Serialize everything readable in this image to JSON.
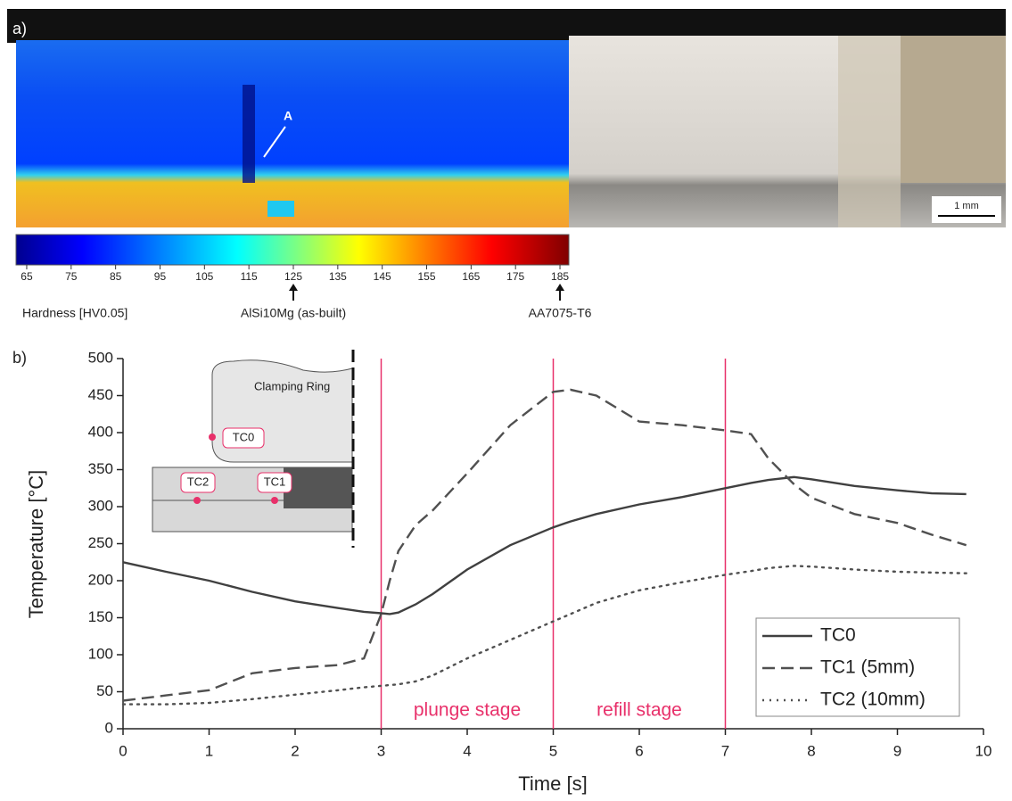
{
  "figure_a": {
    "panel_label": "a)",
    "annotation": "A",
    "scale_bar": "1 mm",
    "colorbar": {
      "title": "Hardness [HV0.05]",
      "lim": [
        62.6,
        187
      ],
      "ticks": [
        65,
        75,
        85,
        95,
        105,
        115,
        125,
        135,
        145,
        155,
        165,
        175,
        185
      ],
      "markers": [
        {
          "value": 125,
          "label": "AlSi10Mg (as-built)"
        },
        {
          "value": 185,
          "label": "AA7075-T6"
        }
      ]
    }
  },
  "inset": {
    "clamping_ring": "Clamping Ring",
    "tc0": "TC0",
    "tc1": "TC1",
    "tc2": "TC2"
  },
  "chart_data": {
    "type": "line",
    "panel_label": "b)",
    "x_label": "Time [s]",
    "y_label": "Temperature [°C]",
    "xlim": [
      0,
      10
    ],
    "ylim": [
      0,
      500
    ],
    "xticks": [
      0,
      1,
      2,
      3,
      4,
      5,
      6,
      7,
      8,
      9,
      10
    ],
    "yticks": [
      0,
      50,
      100,
      150,
      200,
      250,
      300,
      350,
      400,
      450,
      500
    ],
    "vlines": [
      3,
      5,
      7
    ],
    "vline_color": "#e8306a",
    "annotations": [
      "plunge stage",
      "refill stage"
    ],
    "legend": "lower right",
    "x": [
      0,
      0.5,
      1,
      1.5,
      2,
      2.5,
      2.8,
      3,
      3.1,
      3.2,
      3.4,
      3.6,
      4,
      4.5,
      5,
      5.2,
      5.5,
      6,
      6.5,
      7,
      7.3,
      7.5,
      7.8,
      8,
      8.5,
      9,
      9.4,
      9.8
    ],
    "series": [
      {
        "name": "TC0",
        "color": "#404040",
        "style": "solid",
        "values": [
          225,
          212,
          200,
          185,
          172,
          163,
          158,
          156,
          155,
          157,
          168,
          182,
          215,
          248,
          272,
          280,
          290,
          303,
          313,
          325,
          332,
          336,
          340,
          337,
          328,
          322,
          318,
          317
        ]
      },
      {
        "name": "TC1 (5mm)",
        "color": "#505050",
        "style": "dashed",
        "values": [
          38,
          45,
          52,
          75,
          82,
          86,
          95,
          155,
          200,
          240,
          275,
          295,
          345,
          410,
          455,
          458,
          450,
          415,
          410,
          403,
          398,
          365,
          330,
          312,
          290,
          278,
          262,
          248
        ]
      },
      {
        "name": "TC2 (10mm)",
        "color": "#505050",
        "style": "dotted",
        "values": [
          33,
          33,
          35,
          40,
          46,
          52,
          56,
          58,
          59,
          60,
          64,
          72,
          95,
          120,
          145,
          155,
          170,
          187,
          198,
          208,
          213,
          217,
          220,
          219,
          215,
          212,
          211,
          210
        ]
      }
    ]
  }
}
